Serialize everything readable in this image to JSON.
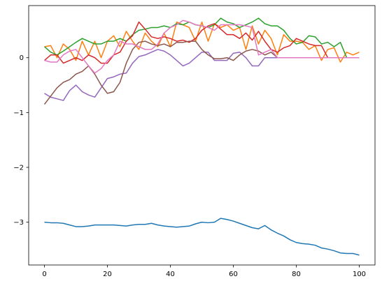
{
  "chart_data": {
    "type": "line",
    "title": "",
    "xlabel": "",
    "ylabel": "",
    "xlim": [
      -5,
      105
    ],
    "ylim": [
      -3.78,
      0.95
    ],
    "x_ticks": [
      0,
      20,
      40,
      60,
      80,
      100
    ],
    "x_tick_labels": [
      "0",
      "20",
      "40",
      "60",
      "80",
      "100"
    ],
    "y_ticks": [
      0,
      -1,
      -2,
      -3
    ],
    "y_tick_labels": [
      "0",
      "−1",
      "−2",
      "−3"
    ],
    "grid": false,
    "legend": "none",
    "series": [
      {
        "color": "#1f77b4",
        "x": [
          0,
          2,
          4,
          6,
          8,
          10,
          12,
          14,
          16,
          18,
          20,
          22,
          24,
          26,
          28,
          30,
          32,
          34,
          36,
          38,
          40,
          42,
          44,
          46,
          48,
          50,
          52,
          54,
          56,
          58,
          60,
          62,
          64,
          66,
          68,
          70,
          72,
          74,
          76,
          78,
          80,
          82,
          84,
          86,
          88,
          90,
          92,
          94,
          96,
          98,
          100
        ],
        "y": [
          -3.0,
          -3.01,
          -3.01,
          -3.02,
          -3.05,
          -3.08,
          -3.08,
          -3.07,
          -3.05,
          -3.05,
          -3.05,
          -3.05,
          -3.06,
          -3.07,
          -3.05,
          -3.04,
          -3.04,
          -3.02,
          -3.05,
          -3.07,
          -3.08,
          -3.09,
          -3.08,
          -3.07,
          -3.03,
          -3.0,
          -3.01,
          -3.0,
          -2.93,
          -2.95,
          -2.98,
          -3.02,
          -3.06,
          -3.1,
          -3.12,
          -3.06,
          -3.14,
          -3.2,
          -3.25,
          -3.32,
          -3.37,
          -3.39,
          -3.4,
          -3.42,
          -3.47,
          -3.49,
          -3.52,
          -3.56,
          -3.57,
          -3.57,
          -3.6
        ]
      },
      {
        "color": "#ff7f0e",
        "x": [
          0,
          2,
          4,
          6,
          8,
          10,
          12,
          14,
          16,
          18,
          20,
          22,
          24,
          26,
          28,
          30,
          32,
          34,
          36,
          38,
          40,
          42,
          44,
          46,
          48,
          50,
          52,
          54,
          56,
          58,
          60,
          62,
          64,
          66,
          68,
          70,
          72,
          74,
          76,
          78,
          80,
          82,
          84,
          86,
          88,
          90,
          92,
          94,
          96,
          98,
          100
        ],
        "y": [
          0.2,
          0.22,
          0.0,
          0.25,
          0.15,
          -0.05,
          0.3,
          0.05,
          0.3,
          0.0,
          0.3,
          0.4,
          0.2,
          0.48,
          0.3,
          0.15,
          0.45,
          0.3,
          0.2,
          0.45,
          0.2,
          0.65,
          0.6,
          0.55,
          0.3,
          0.65,
          0.3,
          0.62,
          0.55,
          0.6,
          0.5,
          0.55,
          0.15,
          0.58,
          0.25,
          0.5,
          0.35,
          0.05,
          0.42,
          0.3,
          0.3,
          0.28,
          0.15,
          0.22,
          -0.05,
          0.15,
          0.18,
          -0.08,
          0.1,
          0.05,
          0.1
        ]
      },
      {
        "color": "#2ca02c",
        "x": [
          0,
          2,
          4,
          6,
          8,
          10,
          12,
          14,
          16,
          18,
          20,
          22,
          24,
          26,
          28,
          30,
          32,
          34,
          36,
          38,
          40,
          42,
          44,
          46,
          48,
          50,
          52,
          54,
          56,
          58,
          60,
          62,
          64,
          66,
          68,
          70,
          72,
          74,
          76,
          78,
          80,
          82,
          84,
          86,
          88,
          90,
          92,
          94,
          96,
          98,
          100
        ],
        "y": [
          0.2,
          0.1,
          0.05,
          0.12,
          0.2,
          0.28,
          0.35,
          0.3,
          0.25,
          0.25,
          0.3,
          0.3,
          0.35,
          0.3,
          0.42,
          0.5,
          0.52,
          0.55,
          0.55,
          0.58,
          0.55,
          0.62,
          0.6,
          0.65,
          0.6,
          0.58,
          0.55,
          0.6,
          0.72,
          0.65,
          0.62,
          0.55,
          0.6,
          0.65,
          0.72,
          0.62,
          0.58,
          0.58,
          0.5,
          0.35,
          0.25,
          0.28,
          0.4,
          0.38,
          0.25,
          0.28,
          0.2,
          0.28,
          0.0,
          0.0,
          0.0
        ]
      },
      {
        "color": "#d62728",
        "x": [
          0,
          2,
          4,
          6,
          8,
          10,
          12,
          14,
          16,
          18,
          20,
          22,
          24,
          26,
          28,
          30,
          32,
          34,
          36,
          38,
          40,
          42,
          44,
          46,
          48,
          50,
          52,
          54,
          56,
          58,
          60,
          62,
          64,
          66,
          68,
          70,
          72,
          74,
          76,
          78,
          80,
          82,
          84,
          86,
          88,
          90,
          92,
          94,
          96,
          98,
          100
        ],
        "y": [
          -0.05,
          0.05,
          0.05,
          -0.1,
          -0.05,
          0.0,
          -0.05,
          0.05,
          0.0,
          -0.1,
          -0.1,
          0.05,
          0.1,
          0.3,
          0.4,
          0.65,
          0.52,
          0.38,
          0.35,
          0.38,
          0.35,
          0.3,
          0.32,
          0.28,
          0.35,
          0.5,
          0.58,
          0.62,
          0.52,
          0.42,
          0.42,
          0.35,
          0.45,
          0.32,
          0.48,
          0.3,
          0.15,
          0.1,
          0.18,
          0.22,
          0.35,
          0.3,
          0.25,
          0.22,
          0.22,
          0.0,
          0.0,
          0.0,
          0.0,
          0.0,
          0.0
        ]
      },
      {
        "color": "#9467bd",
        "x": [
          0,
          2,
          4,
          6,
          8,
          10,
          12,
          14,
          16,
          18,
          20,
          22,
          24,
          26,
          28,
          30,
          32,
          34,
          36,
          38,
          40,
          42,
          44,
          46,
          48,
          50,
          52,
          54,
          56,
          58,
          60,
          62,
          64,
          66,
          68,
          70,
          72,
          74,
          76,
          78,
          80,
          82,
          84,
          86,
          88,
          90,
          92,
          94,
          96,
          98,
          100
        ],
        "y": [
          -0.65,
          -0.72,
          -0.75,
          -0.78,
          -0.6,
          -0.5,
          -0.62,
          -0.68,
          -0.72,
          -0.55,
          -0.38,
          -0.35,
          -0.3,
          -0.28,
          -0.1,
          0.02,
          0.05,
          0.1,
          0.15,
          0.12,
          0.05,
          -0.05,
          -0.15,
          -0.1,
          0.0,
          0.1,
          0.1,
          -0.05,
          -0.05,
          -0.05,
          0.08,
          0.1,
          0.0,
          -0.15,
          -0.15,
          0.0,
          0.0,
          0.0,
          0.0,
          0.0,
          0.0,
          0.0,
          0.0,
          0.0,
          0.0,
          0.0,
          0.0,
          0.0,
          0.0,
          0.0,
          0.0
        ]
      },
      {
        "color": "#8c564b",
        "x": [
          0,
          2,
          4,
          6,
          8,
          10,
          12,
          14,
          16,
          18,
          20,
          22,
          24,
          26,
          28,
          30,
          32,
          34,
          36,
          38,
          40,
          42,
          44,
          46,
          48,
          50,
          52,
          54,
          56,
          58,
          60,
          62,
          64,
          66,
          68,
          70,
          72,
          74,
          76,
          78,
          80,
          82,
          84,
          86,
          88,
          90,
          92,
          94,
          96,
          98,
          100
        ],
        "y": [
          -0.85,
          -0.7,
          -0.55,
          -0.45,
          -0.4,
          -0.3,
          -0.25,
          -0.15,
          -0.3,
          -0.5,
          -0.65,
          -0.62,
          -0.45,
          -0.1,
          0.15,
          0.28,
          0.3,
          0.25,
          0.22,
          0.25,
          0.2,
          0.28,
          0.28,
          0.3,
          0.3,
          0.15,
          0.05,
          -0.02,
          -0.02,
          0.0,
          -0.05,
          0.05,
          0.12,
          0.15,
          0.12,
          0.05,
          0.1,
          0.0,
          0.0,
          0.0,
          0.0,
          0.0,
          0.0,
          0.0,
          0.0,
          0.0,
          0.0,
          0.0,
          0.0,
          0.0,
          0.0
        ]
      },
      {
        "color": "#e377c2",
        "x": [
          0,
          2,
          4,
          6,
          8,
          10,
          12,
          14,
          16,
          18,
          20,
          22,
          24,
          26,
          28,
          30,
          32,
          34,
          36,
          38,
          40,
          42,
          44,
          46,
          48,
          50,
          52,
          54,
          56,
          58,
          60,
          62,
          64,
          66,
          68,
          70,
          72,
          74,
          76,
          78,
          80,
          82,
          84,
          86,
          88,
          90,
          92,
          94,
          96,
          98,
          100
        ],
        "y": [
          -0.05,
          -0.08,
          -0.08,
          0.05,
          0.12,
          0.15,
          0.0,
          -0.15,
          -0.28,
          -0.2,
          -0.05,
          0.05,
          0.3,
          0.25,
          0.25,
          0.2,
          0.15,
          0.15,
          0.25,
          0.45,
          0.55,
          0.6,
          0.68,
          0.65,
          0.6,
          0.58,
          0.55,
          0.5,
          0.6,
          0.6,
          0.6,
          0.6,
          0.58,
          0.55,
          0.05,
          0.1,
          0.15,
          0.0,
          0.0,
          0.0,
          0.0,
          0.0,
          0.0,
          0.0,
          0.0,
          0.0,
          0.0,
          0.0,
          0.0,
          0.0,
          0.0
        ]
      }
    ]
  }
}
